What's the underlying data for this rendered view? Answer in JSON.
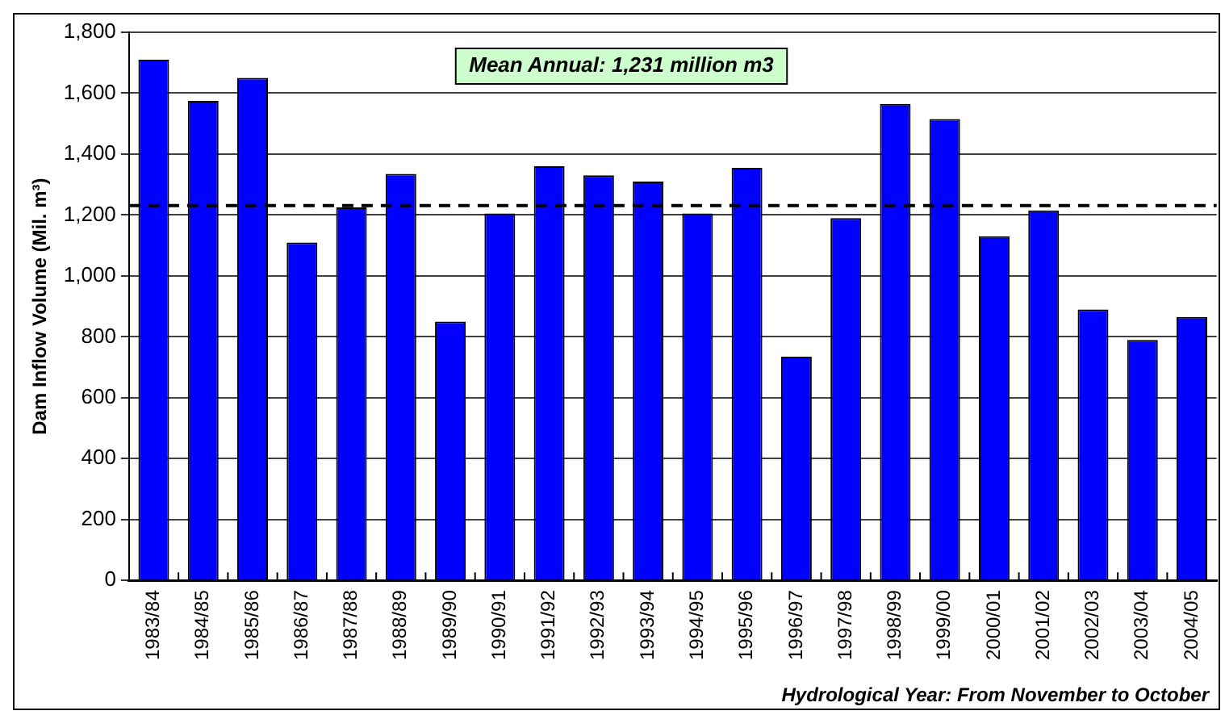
{
  "chart_data": {
    "type": "bar",
    "ylabel": "Dam Inflow Volume (Mil. m³)",
    "categories": [
      "1983/84",
      "1984/85",
      "1985/86",
      "1986/87",
      "1987/88",
      "1988/89",
      "1989/90",
      "1990/91",
      "1991/92",
      "1992/93",
      "1993/94",
      "1994/95",
      "1995/96",
      "1996/97",
      "1997/98",
      "1998/99",
      "1999/00",
      "2000/01",
      "2001/02",
      "2002/03",
      "2003/04",
      "2004/05"
    ],
    "values": [
      1710,
      1575,
      1650,
      1110,
      1225,
      1335,
      850,
      1205,
      1360,
      1330,
      1310,
      1205,
      1355,
      735,
      1190,
      1565,
      1515,
      1130,
      1215,
      890,
      790,
      865
    ],
    "color": "#0000ff",
    "ylim": [
      0,
      1800
    ],
    "yticks": [
      0,
      {
        "value": 200,
        "label": "200"
      },
      {
        "value": 400,
        "label": "400"
      },
      {
        "value": 600,
        "label": "600"
      },
      {
        "value": 800,
        "label": "800"
      },
      {
        "value": 1000,
        "label": "1,000"
      },
      {
        "value": 1200,
        "label": "1,200"
      },
      {
        "value": 1400,
        "label": "1,400"
      },
      {
        "value": 1600,
        "label": "1,600"
      },
      {
        "value": 1800,
        "label": "1,800"
      }
    ],
    "grid": "y",
    "ref_lines": [
      {
        "axis": "y",
        "value": 1231,
        "label": "Mean Annual: 1,231 million m3",
        "color": "#000000",
        "line_style": "dashed"
      }
    ],
    "annotations": [
      "Hydrological Year: From November to October"
    ]
  }
}
